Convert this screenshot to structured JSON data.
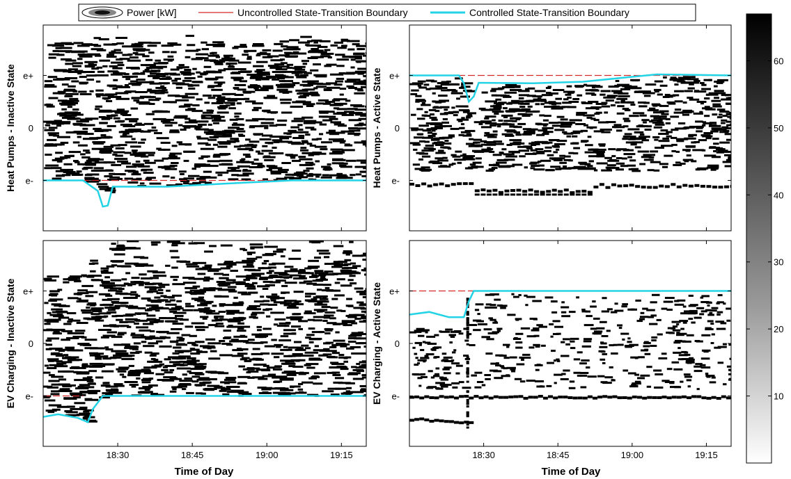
{
  "legend": {
    "placement": "top-center",
    "entries": [
      {
        "label": "Power [kW]",
        "symbol": "power-contour"
      },
      {
        "label": "Uncontrolled State-Transition Boundary",
        "color": "#d62728",
        "style": "dashed"
      },
      {
        "label": "Controlled State-Transition Boundary",
        "color": "#22d3e6",
        "style": "solid"
      }
    ]
  },
  "colorbar": {
    "ticks": [
      10,
      20,
      30,
      40,
      50,
      60
    ],
    "range": [
      0,
      67
    ],
    "colormap": "gray-reversed"
  },
  "chart_data": [
    {
      "type": "heatmap",
      "panel": "top-left",
      "ylabel": "Heat Pumps - Inactive State",
      "xlabel": "",
      "yticks": [
        "e+",
        "0",
        "e-"
      ],
      "xticks": [
        "18:30",
        "18:45",
        "19:00",
        "19:15"
      ],
      "xlim": [
        "18:15",
        "19:20"
      ],
      "density_pattern": "full",
      "uncontrolled_boundary": {
        "level": "e-",
        "from": "18:15",
        "to": "19:20"
      },
      "controlled_boundary": {
        "x": [
          "18:15",
          "18:23",
          "18:26",
          "18:27",
          "18:28",
          "18:29",
          "18:31",
          "18:40",
          "18:52",
          "19:05",
          "19:20"
        ],
        "y": [
          -1.0,
          -1.0,
          -1.2,
          -1.5,
          -1.48,
          -1.12,
          -1.12,
          -1.12,
          -1.06,
          -1.0,
          -1.0
        ]
      }
    },
    {
      "type": "heatmap",
      "panel": "top-right",
      "ylabel": "Heat Pumps - Active State",
      "xlabel": "",
      "yticks": [
        "e+",
        "0",
        "e-"
      ],
      "xticks": [
        "18:30",
        "18:45",
        "19:00",
        "19:15"
      ],
      "xlim": [
        "18:15",
        "19:20"
      ],
      "density_pattern": "active-band",
      "uncontrolled_boundary": {
        "level": "e+",
        "from": "18:15",
        "to": "19:20"
      },
      "controlled_boundary": {
        "x": [
          "18:15",
          "18:25",
          "18:26",
          "18:27",
          "18:28",
          "18:29",
          "18:30",
          "18:40",
          "18:50",
          "19:05",
          "19:20"
        ],
        "y": [
          1.0,
          1.0,
          0.85,
          0.5,
          0.6,
          0.86,
          0.86,
          0.85,
          0.88,
          1.02,
          1.0
        ]
      }
    },
    {
      "type": "heatmap",
      "panel": "bottom-left",
      "ylabel": "EV Charging - Inactive State",
      "xlabel": "Time of Day",
      "yticks": [
        "e+",
        "0",
        "e-"
      ],
      "xticks": [
        "18:30",
        "18:45",
        "19:00",
        "19:15"
      ],
      "xlim": [
        "18:15",
        "19:20"
      ],
      "density_pattern": "diagonal",
      "uncontrolled_boundary": {
        "level": "e-",
        "from": "18:15",
        "to": "18:23"
      },
      "controlled_boundary": {
        "x": [
          "18:15",
          "18:18",
          "18:22",
          "18:24",
          "18:25",
          "18:27",
          "19:20"
        ],
        "y": [
          -1.4,
          -1.35,
          -1.42,
          -1.5,
          -1.25,
          -1.0,
          -1.0
        ]
      }
    },
    {
      "type": "heatmap",
      "panel": "bottom-right",
      "ylabel": "EV Charging - Active State",
      "xlabel": "Time of Day",
      "yticks": [
        "e+",
        "0",
        "e-"
      ],
      "xticks": [
        "18:30",
        "18:45",
        "19:00",
        "19:15"
      ],
      "xlim": [
        "18:15",
        "19:20"
      ],
      "density_pattern": "sparse-active",
      "uncontrolled_boundary": {
        "level": "e+",
        "from": "18:15",
        "to": "18:28"
      },
      "controlled_boundary": {
        "x": [
          "18:15",
          "18:19",
          "18:23",
          "18:26",
          "18:27",
          "18:28",
          "19:20"
        ],
        "y": [
          0.55,
          0.6,
          0.5,
          0.5,
          0.8,
          1.0,
          1.0
        ]
      }
    }
  ]
}
